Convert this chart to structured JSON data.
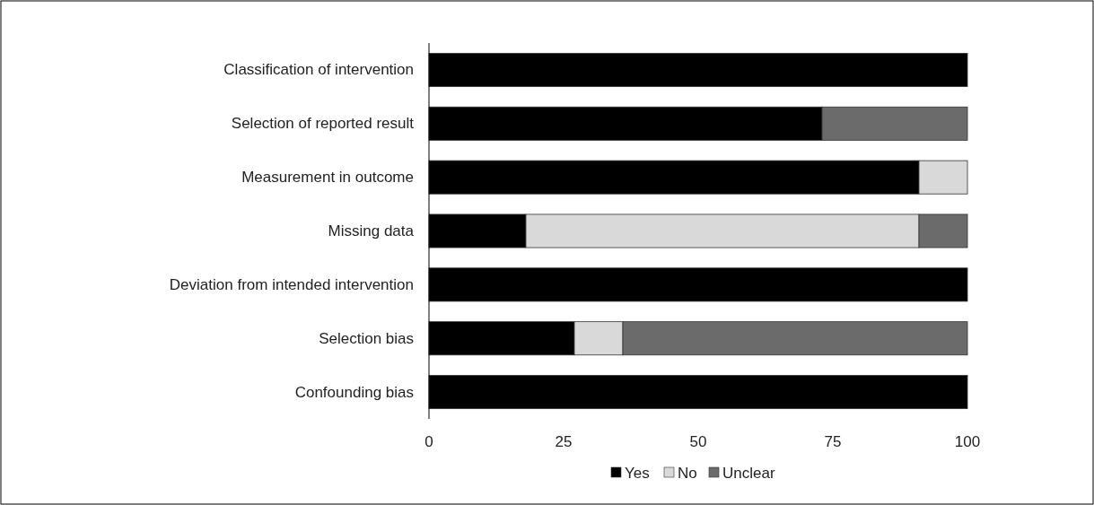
{
  "chart_data": {
    "type": "bar",
    "orientation": "horizontal",
    "stacked": true,
    "categories": [
      "Classification of intervention",
      "Selection of reported result",
      "Measurement in outcome",
      "Missing data",
      "Deviation from intended intervention",
      "Selection bias",
      "Confounding bias"
    ],
    "series": [
      {
        "name": "Yes",
        "color": "#000000",
        "values": [
          100,
          73,
          91,
          18,
          100,
          27,
          100
        ]
      },
      {
        "name": "No",
        "color": "#d9d9d9",
        "values": [
          0,
          0,
          9,
          73,
          0,
          9,
          0
        ]
      },
      {
        "name": "Unclear",
        "color": "#6b6b6b",
        "values": [
          0,
          27,
          0,
          9,
          0,
          64,
          0
        ]
      }
    ],
    "xlim": [
      0,
      100
    ],
    "xticks": [
      0,
      25,
      50,
      75,
      100
    ],
    "grid": false,
    "legend": "bottom"
  }
}
